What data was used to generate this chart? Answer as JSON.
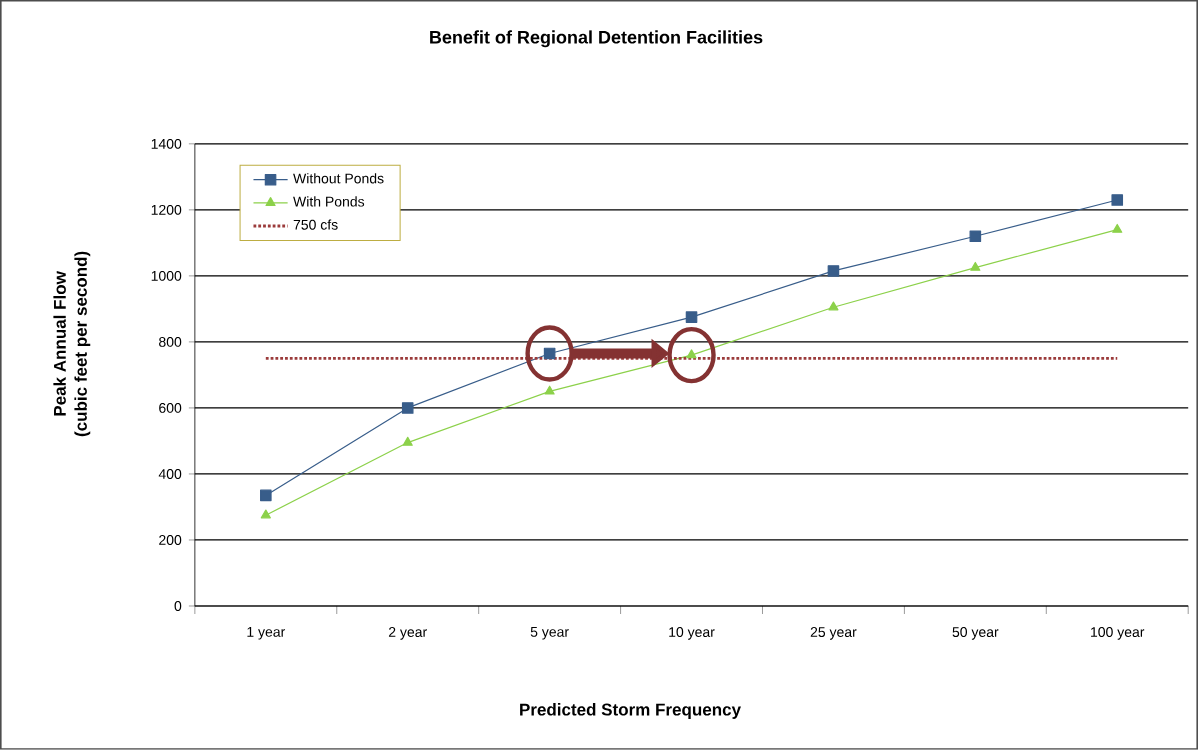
{
  "chart_data": {
    "type": "line",
    "title": "Benefit of Regional Detention Facilities",
    "xlabel": "Predicted Storm Frequency",
    "ylabel": "Peak Annual Flow\n(cubic feet per second)",
    "categories": [
      "1 year",
      "2 year",
      "5 year",
      "10 year",
      "25 year",
      "50 year",
      "100 year"
    ],
    "series": [
      {
        "name": "Without Ponds",
        "color": "#385d8a",
        "marker": "square",
        "values": [
          335,
          600,
          765,
          875,
          1015,
          1120,
          1230
        ]
      },
      {
        "name": "With Ponds",
        "color": "#8cd14a",
        "marker": "triangle",
        "values": [
          275,
          495,
          650,
          760,
          905,
          1025,
          1140
        ]
      },
      {
        "name": "750 cfs",
        "color": "#9b3b3b",
        "marker": "none",
        "line_style": "dotted",
        "values": [
          750,
          750,
          750,
          750,
          750,
          750,
          750
        ]
      }
    ],
    "ylim": [
      0,
      1400
    ],
    "yticks": [
      0,
      200,
      400,
      600,
      800,
      1000,
      1200,
      1400
    ],
    "grid": "y",
    "legend": "top left"
  }
}
